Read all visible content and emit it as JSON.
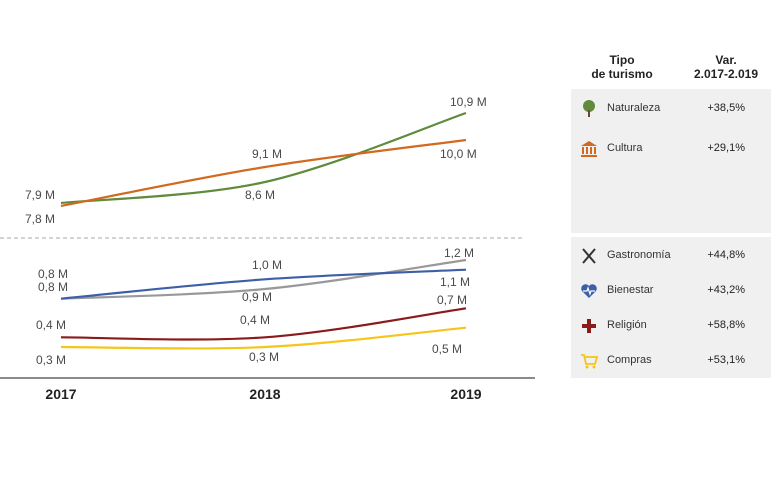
{
  "chart_data": {
    "type": "line",
    "x": [
      "2017",
      "2018",
      "2019"
    ],
    "series": [
      {
        "name": "Naturaleza",
        "color": "#5f8b3b",
        "values": [
          7.9,
          8.6,
          10.9
        ],
        "labels": [
          "7,9 M",
          "8,6 M",
          "10,9 M"
        ]
      },
      {
        "name": "Cultura",
        "color": "#d2691e",
        "values": [
          7.8,
          9.1,
          10.0
        ],
        "labels": [
          "7,8 M",
          "9,1 M",
          "10,0 M"
        ]
      },
      {
        "name": "Gastronomía",
        "color": "#999999",
        "values": [
          0.8,
          0.9,
          1.2
        ],
        "labels": [
          "0,8 M",
          "0,9 M",
          "1,2 M"
        ]
      },
      {
        "name": "Bienestar",
        "color": "#3d5fa8",
        "values": [
          0.8,
          1.0,
          1.1
        ],
        "labels": [
          "0,8 M",
          "1,0 M",
          "1,1 M"
        ]
      },
      {
        "name": "Religión",
        "color": "#8b1a1a",
        "values": [
          0.4,
          0.4,
          0.7
        ],
        "labels": [
          "0,4 M",
          "0,4 M",
          "0,7 M"
        ]
      },
      {
        "name": "Compras",
        "color": "#f5c518",
        "values": [
          0.3,
          0.3,
          0.5
        ],
        "labels": [
          "0,3 M",
          "0,3 M",
          "0,5 M"
        ]
      }
    ],
    "scale": "split axis (upper and lower panels)",
    "grid": false,
    "legend": "table at right"
  },
  "table": {
    "header_type": "Tipo\nde turismo",
    "header_var": "Var.\n2.017-2.019",
    "rows": [
      {
        "name": "Naturaleza",
        "var": "+38,5%",
        "icon": "tree-icon",
        "color": "#5f8b3b"
      },
      {
        "name": "Cultura",
        "var": "+29,1%",
        "icon": "monument-icon",
        "color": "#d2691e"
      },
      {
        "name": "Gastronomía",
        "var": "+44,8%",
        "icon": "cutlery-icon",
        "color": "#333333"
      },
      {
        "name": "Bienestar",
        "var": "+43,2%",
        "icon": "heart-pulse-icon",
        "color": "#3d5fa8"
      },
      {
        "name": "Religión",
        "var": "+58,8%",
        "icon": "cross-icon",
        "color": "#8b1a1a"
      },
      {
        "name": "Compras",
        "var": "+53,1%",
        "icon": "cart-icon",
        "color": "#f5c518"
      }
    ]
  }
}
